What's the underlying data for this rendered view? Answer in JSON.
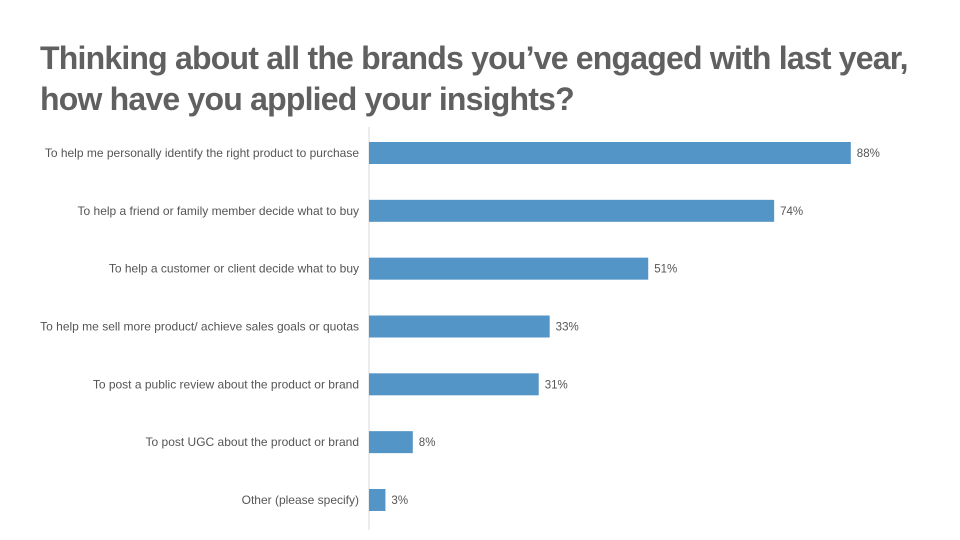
{
  "slide": {
    "title_line1": "Thinking about all the brands you’ve engaged with last year,",
    "title_line2": "how have you applied your insights?"
  },
  "chart_data": {
    "type": "bar",
    "orientation": "horizontal",
    "title": "Thinking about all the brands you’ve engaged with last year, how have you applied your insights?",
    "xlabel": "",
    "ylabel": "",
    "unit": "%",
    "xlim": [
      0,
      100
    ],
    "grid": false,
    "legend": "none",
    "bar_color": "#5395c6",
    "categories": [
      "To help me personally identify the right product to purchase",
      "To help a friend or family member decide what to buy",
      "To help a customer or client decide what to buy",
      "To help me sell more product/ achieve sales goals or quotas",
      "To post a public review about the product or brand",
      "To post UGC about the product or brand",
      "Other (please specify)"
    ],
    "values": [
      88,
      74,
      51,
      33,
      31,
      8,
      3
    ],
    "data_labels": [
      "88%",
      "74%",
      "51%",
      "33%",
      "31%",
      "8%",
      "3%"
    ]
  }
}
